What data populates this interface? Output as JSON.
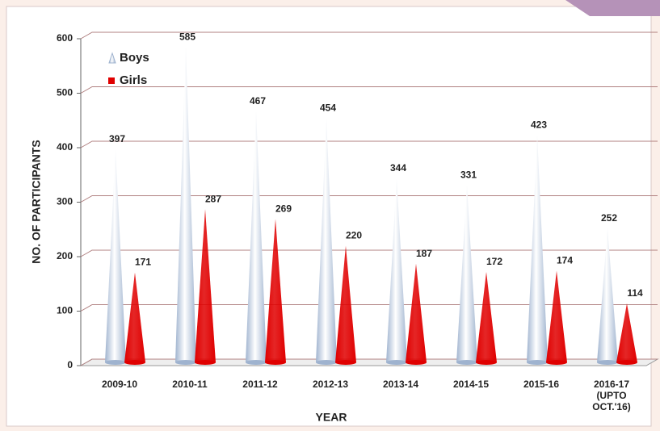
{
  "chart_data": {
    "type": "cone_bar",
    "categories": [
      "2009-10",
      "2010-11",
      "2011-12",
      "2012-13",
      "2013-14",
      "2014-15",
      "2015-16",
      "2016-17 (UPTO OCT.'16)"
    ],
    "series": [
      {
        "name": "Boys",
        "color": "#9fb3cf",
        "values": [
          397,
          585,
          467,
          454,
          344,
          331,
          423,
          252
        ]
      },
      {
        "name": "Girls",
        "color": "#e00000",
        "values": [
          171,
          287,
          269,
          220,
          187,
          172,
          174,
          114
        ]
      }
    ],
    "ylim": [
      0,
      600
    ],
    "yticks": [
      0,
      100,
      200,
      300,
      400,
      500,
      600
    ],
    "grid": true,
    "x_label": "YEAR",
    "y_label": "NO. OF PARTICIPANTS",
    "legend": "top-left"
  }
}
